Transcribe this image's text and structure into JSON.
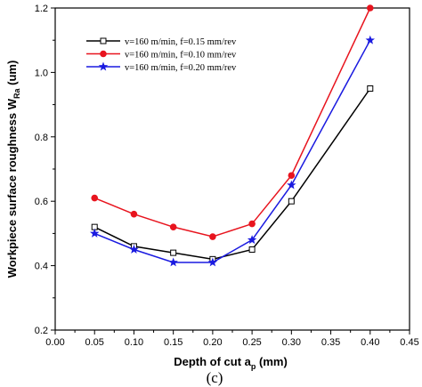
{
  "chart_data": {
    "type": "line",
    "xlabel": "Depth of cut",
    "xlabel_sym": "a",
    "xlabel_sub": "p",
    "xlabel_unit": " (mm)",
    "ylabel": "Workpiece surface roughness W",
    "ylabel_sub": "Ra",
    "ylabel_unit": " (um)",
    "caption": "(c)",
    "xlim": [
      0.0,
      0.45
    ],
    "ylim": [
      0.2,
      1.2
    ],
    "xticks": [
      "0.00",
      "0.05",
      "0.10",
      "0.15",
      "0.20",
      "0.25",
      "0.30",
      "0.35",
      "0.40",
      "0.45"
    ],
    "yticks": [
      "0.2",
      "0.4",
      "0.6",
      "0.8",
      "1.0",
      "1.2"
    ],
    "legend_position": "top-left",
    "series": [
      {
        "name": "v=160 m/min, f=0.15 mm/rev",
        "color": "#000000",
        "marker": "open-square",
        "x": [
          0.05,
          0.1,
          0.15,
          0.2,
          0.25,
          0.3,
          0.4
        ],
        "y": [
          0.52,
          0.46,
          0.44,
          0.42,
          0.45,
          0.6,
          0.95
        ]
      },
      {
        "name": "v=160 m/min, f=0.10 mm/rev",
        "color": "#e8141e",
        "marker": "filled-circle",
        "x": [
          0.05,
          0.1,
          0.15,
          0.2,
          0.25,
          0.3,
          0.4
        ],
        "y": [
          0.61,
          0.56,
          0.52,
          0.49,
          0.53,
          0.68,
          1.2
        ]
      },
      {
        "name": "v=160 m/min, f=0.20 mm/rev",
        "color": "#1a1ae0",
        "marker": "star",
        "x": [
          0.05,
          0.1,
          0.15,
          0.2,
          0.25,
          0.3,
          0.4
        ],
        "y": [
          0.5,
          0.45,
          0.41,
          0.41,
          0.48,
          0.65,
          1.1
        ]
      }
    ]
  }
}
